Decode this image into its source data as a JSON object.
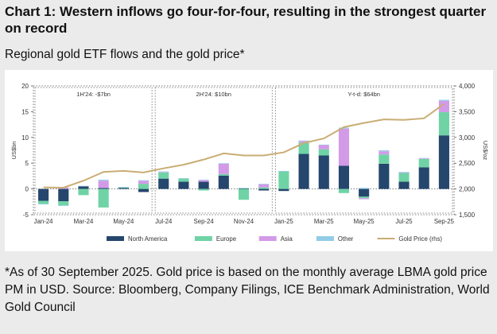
{
  "title": "Chart 1: Western inflows go four-for-four, resulting in the strongest quarter on record",
  "subtitle": "Regional gold ETF flows and the gold price*",
  "footnote": "*As of 30 September 2025. Gold price is based on the monthly average LBMA gold price PM in USD. Source: Bloomberg, Company Filings, ICE Benchmark Administration, World Gold Council",
  "colors": {
    "North America": "#25466d",
    "Europe": "#6fd3a6",
    "Asia": "#d39ae8",
    "Other": "#92cce8",
    "Gold Price (rhs)": "#c9ad74"
  },
  "chart_data": {
    "type": "bar",
    "stacked": true,
    "ylabel": "US$bn",
    "y2label": "US$/oz",
    "ylim": [
      -5,
      20
    ],
    "y2lim": [
      1500,
      4000
    ],
    "yticks": [
      -5,
      0,
      5,
      10,
      15,
      20
    ],
    "y2ticks": [
      "1,500",
      "2,000",
      "2,500",
      "3,000",
      "3,500",
      "4,000"
    ],
    "y2tick_values": [
      1500,
      2000,
      2500,
      3000,
      3500,
      4000
    ],
    "categories": [
      "Jan-24",
      "Feb-24",
      "Mar-24",
      "Apr-24",
      "May-24",
      "Jun-24",
      "Jul-24",
      "Aug-24",
      "Sep-24",
      "Oct-24",
      "Nov-24",
      "Dec-24",
      "Jan-25",
      "Feb-25",
      "Mar-25",
      "Apr-25",
      "May-25",
      "Jun-25",
      "Jul-25",
      "Aug-25",
      "Sep-25"
    ],
    "tick_labels": [
      "Jan-24",
      "Mar-24",
      "May-24",
      "Jul-24",
      "Sep-24",
      "Nov-24",
      "Jan-25",
      "Mar-25",
      "May-25",
      "Jul-25",
      "Sep-25"
    ],
    "tick_label_index": [
      0,
      2,
      4,
      6,
      8,
      10,
      12,
      14,
      16,
      18,
      20
    ],
    "series": [
      {
        "name": "North America",
        "values": [
          -2.3,
          -2.4,
          0.5,
          0.2,
          0.2,
          -0.6,
          2.0,
          1.4,
          1.4,
          2.6,
          0.1,
          -0.3,
          -0.4,
          6.8,
          6.5,
          4.5,
          -1.5,
          4.9,
          1.4,
          4.2,
          10.4
        ]
      },
      {
        "name": "Europe",
        "values": [
          -0.6,
          -0.8,
          -1.2,
          -3.6,
          0.1,
          1.0,
          1.2,
          0.6,
          -0.3,
          0.3,
          -2.1,
          0.3,
          3.4,
          2.2,
          1.2,
          -0.8,
          -0.3,
          1.8,
          1.7,
          1.6,
          4.5
        ]
      },
      {
        "name": "Asia",
        "values": [
          0.0,
          0.3,
          0.0,
          1.4,
          0.0,
          0.6,
          0.1,
          0.0,
          0.3,
          2.0,
          0.0,
          0.6,
          0.0,
          0.3,
          0.8,
          7.2,
          -0.2,
          0.6,
          0.1,
          0.1,
          2.2
        ]
      },
      {
        "name": "Other",
        "values": [
          -0.1,
          -0.1,
          0.1,
          0.2,
          0.1,
          0.1,
          0.1,
          0.1,
          0.1,
          0.1,
          0.1,
          0.1,
          0.1,
          0.1,
          0.1,
          0.2,
          0.2,
          0.2,
          0.1,
          0.1,
          0.2
        ]
      }
    ],
    "line": {
      "name": "Gold Price (rhs)",
      "values": [
        2030,
        2025,
        2160,
        2330,
        2350,
        2320,
        2400,
        2470,
        2570,
        2690,
        2650,
        2650,
        2710,
        2890,
        2980,
        3200,
        3280,
        3350,
        3340,
        3370,
        3650
      ]
    },
    "annotations": [
      {
        "label": "1H'24: -$7bn",
        "from": 0,
        "to": 5
      },
      {
        "label": "2H'24: $10bn",
        "from": 6,
        "to": 11
      },
      {
        "label": "Y-t-d: $64bn",
        "from": 12,
        "to": 20
      }
    ],
    "legend_position": "bottom",
    "grid": false
  }
}
